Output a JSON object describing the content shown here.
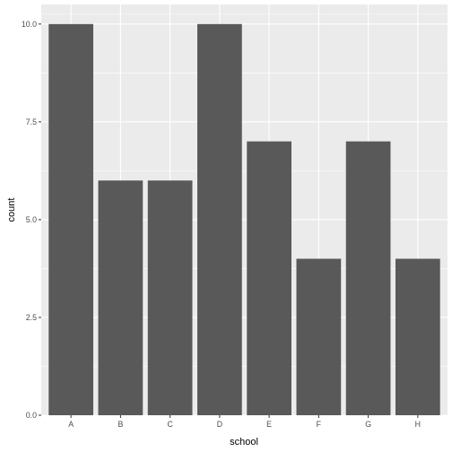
{
  "chart_data": {
    "type": "bar",
    "categories": [
      "A",
      "B",
      "C",
      "D",
      "E",
      "F",
      "G",
      "H"
    ],
    "values": [
      10,
      6,
      6,
      10,
      7,
      4,
      7,
      4
    ],
    "xlabel": "school",
    "ylabel": "count",
    "ylim": [
      0,
      10.5
    ],
    "yticks": [
      0,
      2.5,
      5,
      7.5,
      10
    ],
    "ytick_labels": [
      "0.0",
      "2.5",
      "5.0",
      "7.5",
      "10.0"
    ],
    "grid": true,
    "legend": "none"
  },
  "colors": {
    "panel_background": "#ebebeb",
    "grid_major": "#ffffff",
    "bar_fill": "#595959",
    "tick_text": "#4d4d4d",
    "tick_mark": "#333333"
  }
}
